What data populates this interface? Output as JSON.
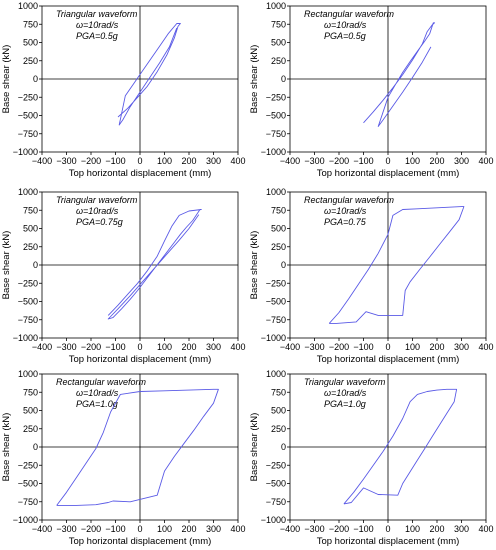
{
  "colors": {
    "curve": "#5a5ae6",
    "axis": "#000000",
    "frame": "#000000"
  },
  "chart_data": [
    {
      "type": "line",
      "title": "",
      "annotation": [
        "Triangular waveform",
        "ω=10rad/s",
        "PGA=0.5g"
      ],
      "xlabel": "Top horizontal displacement (mm)",
      "ylabel": "Base shear (kN)",
      "xlim": [
        -400,
        400
      ],
      "ylim": [
        -1000,
        1000
      ],
      "xticks": [
        -400,
        -300,
        -200,
        -100,
        0,
        100,
        200,
        300,
        400
      ],
      "yticks": [
        1000,
        750,
        500,
        250,
        0,
        -250,
        -500,
        -750,
        -1000
      ],
      "x": [
        -90,
        -50,
        -10,
        30,
        70,
        110,
        140,
        155,
        165,
        150,
        115,
        80,
        45,
        10,
        -25,
        -60,
        -85,
        -70,
        -40,
        0,
        40,
        80,
        120,
        150
      ],
      "y": [
        -520,
        -400,
        -250,
        -100,
        100,
        330,
        560,
        720,
        760,
        760,
        620,
        450,
        280,
        110,
        -60,
        -230,
        -630,
        -560,
        -380,
        -180,
        20,
        220,
        440,
        700
      ]
    },
    {
      "type": "line",
      "title": "",
      "annotation": [
        "Rectangular waveform",
        "ω=10rad/s",
        "PGA=0.5g"
      ],
      "xlabel": "Top horizontal displacement (mm)",
      "ylabel": "Base shear (kN)",
      "xlim": [
        -400,
        400
      ],
      "ylim": [
        -1000,
        1000
      ],
      "xticks": [
        -400,
        -300,
        -200,
        -100,
        0,
        100,
        200,
        300,
        400
      ],
      "yticks": [
        1000,
        750,
        500,
        250,
        0,
        -250,
        -500,
        -750,
        -1000
      ],
      "x": [
        -100,
        -60,
        -20,
        20,
        60,
        100,
        140,
        160,
        180,
        190,
        185,
        170,
        150,
        120,
        90,
        60,
        30,
        0,
        -40,
        -20,
        20,
        60,
        100,
        140,
        175
      ],
      "y": [
        -600,
        -450,
        -290,
        -120,
        60,
        260,
        480,
        650,
        740,
        770,
        770,
        620,
        520,
        380,
        240,
        90,
        -80,
        -250,
        -650,
        -560,
        -370,
        -180,
        20,
        230,
        440
      ]
    },
    {
      "type": "line",
      "title": "",
      "annotation": [
        "Triangular waveform",
        "ω=10rad/s",
        "PGA=0.75g"
      ],
      "xlabel": "Top horizontal displacement (mm)",
      "ylabel": "Base shear (kN)",
      "xlim": [
        -400,
        400
      ],
      "ylim": [
        -1000,
        1000
      ],
      "xticks": [
        -400,
        -300,
        -200,
        -100,
        0,
        100,
        200,
        300,
        400
      ],
      "yticks": [
        1000,
        750,
        500,
        250,
        0,
        -250,
        -500,
        -750,
        -1000
      ],
      "x": [
        -130,
        -90,
        -50,
        -10,
        30,
        70,
        100,
        130,
        160,
        200,
        250,
        245,
        215,
        190,
        165,
        140,
        115,
        90,
        65,
        40,
        15,
        -10,
        -40,
        -75,
        -110,
        -130,
        -90,
        -40,
        10,
        60,
        110,
        160,
        200,
        240
      ],
      "y": [
        -690,
        -550,
        -400,
        -250,
        -80,
        120,
        330,
        530,
        680,
        740,
        760,
        760,
        610,
        520,
        420,
        310,
        200,
        90,
        -20,
        -130,
        -240,
        -350,
        -470,
        -600,
        -720,
        -740,
        -600,
        -420,
        -230,
        -40,
        150,
        340,
        500,
        690
      ]
    },
    {
      "type": "line",
      "title": "",
      "annotation": [
        "Rectangular waveform",
        "ω=10rad/s",
        "PGA=0.75"
      ],
      "xlabel": "Top horizontal displacement (mm)",
      "ylabel": "Base shear (kN)",
      "xlim": [
        -400,
        400
      ],
      "ylim": [
        -1000,
        1000
      ],
      "xticks": [
        -400,
        -300,
        -200,
        -100,
        0,
        100,
        200,
        300,
        400
      ],
      "yticks": [
        1000,
        750,
        500,
        250,
        0,
        -250,
        -500,
        -750,
        -1000
      ],
      "x": [
        -240,
        -200,
        -160,
        -120,
        -80,
        -40,
        0,
        20,
        60,
        120,
        180,
        240,
        300,
        310,
        290,
        250,
        210,
        170,
        130,
        90,
        70,
        60,
        -40,
        -90,
        -130,
        -170,
        -210,
        -240
      ],
      "y": [
        -800,
        -650,
        -460,
        -260,
        -60,
        160,
        420,
        680,
        760,
        770,
        780,
        790,
        800,
        800,
        620,
        450,
        280,
        110,
        -60,
        -230,
        -350,
        -690,
        -690,
        -640,
        -780,
        -790,
        -800,
        -800
      ]
    },
    {
      "type": "line",
      "title": "",
      "annotation": [
        "Rectangular waveform",
        "ω=10rad/s",
        "PGA=1.0g"
      ],
      "xlabel": "Top horizontal displacement (mm)",
      "ylabel": "Base shear (kN)",
      "xlim": [
        -400,
        400
      ],
      "ylim": [
        -1000,
        1000
      ],
      "xticks": [
        -400,
        -300,
        -200,
        -100,
        0,
        100,
        200,
        300,
        400
      ],
      "yticks": [
        1000,
        750,
        500,
        250,
        0,
        -250,
        -500,
        -750,
        -1000
      ],
      "x": [
        -340,
        -300,
        -260,
        -220,
        -180,
        -150,
        -120,
        -80,
        0,
        100,
        200,
        300,
        320,
        300,
        260,
        220,
        180,
        140,
        100,
        70,
        -40,
        -110,
        -130,
        -180,
        -260,
        -340
      ],
      "y": [
        -800,
        -620,
        -420,
        -220,
        -20,
        200,
        480,
        720,
        760,
        770,
        780,
        790,
        790,
        600,
        420,
        230,
        50,
        -130,
        -330,
        -660,
        -750,
        -740,
        -760,
        -790,
        -800,
        -800
      ]
    },
    {
      "type": "line",
      "title": "",
      "annotation": [
        "Triangular waveform",
        "ω=10rad/s",
        "PGA=1.0g"
      ],
      "xlabel": "Top horizontal displacement (mm)",
      "ylabel": "Base shear (kN)",
      "xlim": [
        -400,
        400
      ],
      "ylim": [
        -1000,
        1000
      ],
      "xticks": [
        -400,
        -300,
        -200,
        -100,
        0,
        100,
        200,
        300,
        400
      ],
      "yticks": [
        1000,
        750,
        500,
        250,
        0,
        -250,
        -500,
        -750,
        -1000
      ],
      "x": [
        -180,
        -140,
        -100,
        -60,
        -20,
        20,
        60,
        90,
        120,
        160,
        200,
        240,
        280,
        270,
        240,
        210,
        180,
        150,
        120,
        90,
        60,
        40,
        -40,
        -100,
        -150,
        -180
      ],
      "y": [
        -780,
        -620,
        -440,
        -250,
        -60,
        150,
        390,
        620,
        720,
        760,
        780,
        790,
        790,
        620,
        460,
        300,
        140,
        -20,
        -180,
        -340,
        -500,
        -660,
        -650,
        -560,
        -760,
        -780
      ]
    }
  ]
}
